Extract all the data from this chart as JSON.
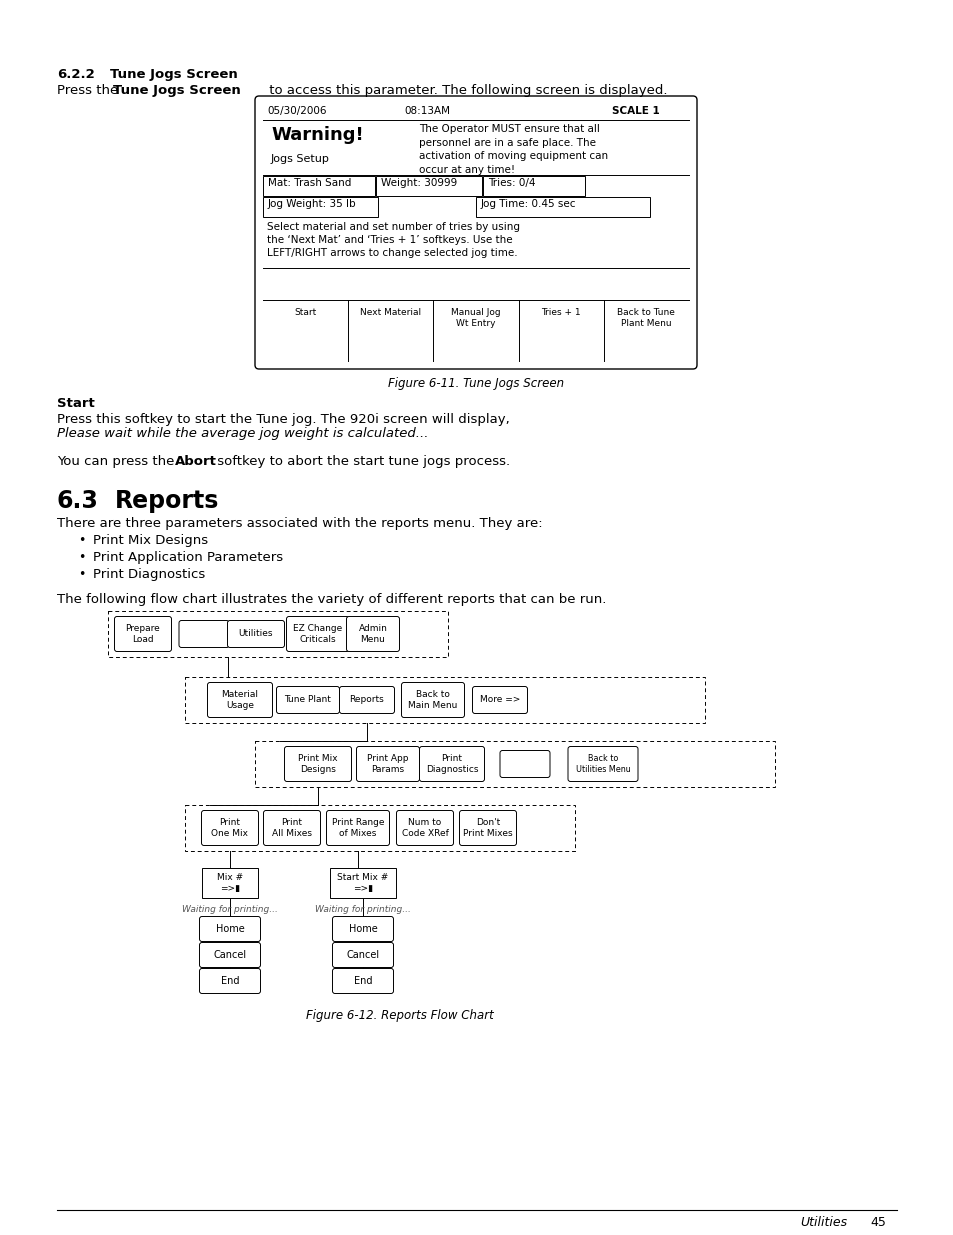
{
  "bg_color": "#ffffff",
  "text_color": "#000000",
  "page_width": 9.54,
  "page_height": 12.35,
  "section_622_title_num": "6.2.2",
  "section_622_title_text": "Tune Jogs Screen",
  "screen_title_left": "05/30/2006",
  "screen_title_mid": "08:13AM",
  "screen_title_right": "SCALE 1",
  "warning_text": "Warning!",
  "warning_subtext": "Jogs Setup",
  "warning_right": "The Operator MUST ensure that all\npersonnel are in a safe place. The\nactivation of moving equipment can\noccur at any time!",
  "row1_left": "Mat: Trash Sand",
  "row1_mid": "Weight: 30999",
  "row1_right": "Tries: 0/4",
  "row2_left": "Jog Weight: 35 lb",
  "row2_right": "Jog Time: 0.45 sec",
  "instruction_text": "Select material and set number of tries by using\nthe ‘Next Mat’ and ‘Tries + 1’ softkeys. Use the\nLEFT/RIGHT arrows to change selected jog time.",
  "softkeys": [
    "Start",
    "Next Material",
    "Manual Jog\nWt Entry",
    "Tries + 1",
    "Back to Tune\nPlant Menu"
  ],
  "fig_caption_1": "Figure 6-11. Tune Jogs Screen",
  "start_heading": "Start",
  "start_para1": "Press this softkey to start the Tune jog. The 920i screen will display, ",
  "start_italic": "Please wait while the average jog weight is calculated...",
  "abort_line_pre": "You can press the ",
  "abort_word": "Abort",
  "abort_line_post": " softkey to abort the start tune jogs process.",
  "section_63_num": "6.3",
  "section_63_text": "Reports",
  "section_63_intro": "There are three parameters associated with the reports menu. They are:",
  "bullet_items": [
    "Print Mix Designs",
    "Print Application Parameters",
    "Print Diagnostics"
  ],
  "flowchart_intro": "The following flow chart illustrates the variety of different reports that can be run.",
  "fig_caption_2": "Figure 6-12. Reports Flow Chart",
  "footer_right_italic": "Utilities",
  "footer_right_num": "45"
}
